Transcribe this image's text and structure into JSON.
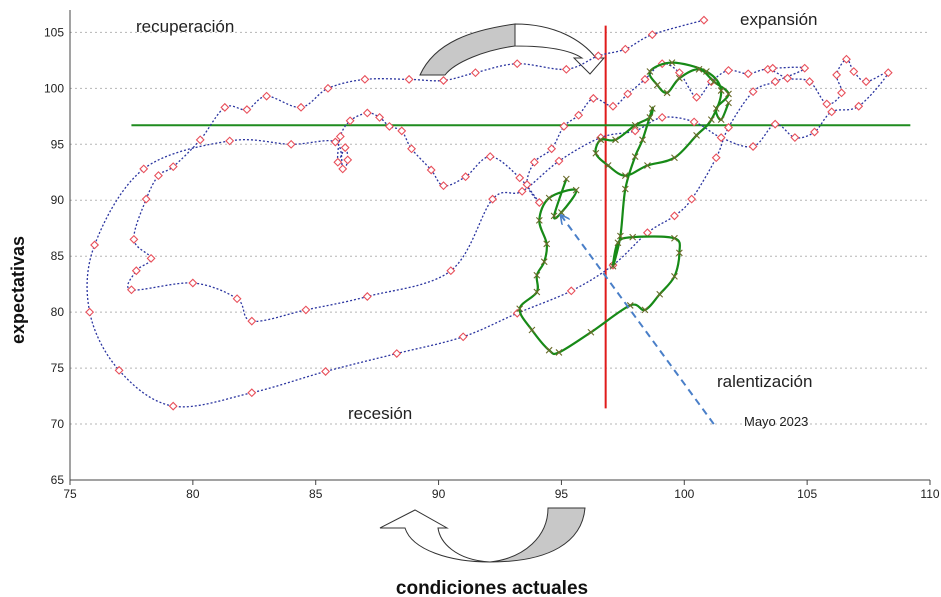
{
  "chart_data": {
    "type": "line",
    "xlabel": "condiciones actuales",
    "ylabel": "expectativas",
    "xlim": [
      75,
      110
    ],
    "ylim": [
      65,
      107
    ],
    "x_ticks": [
      75,
      80,
      85,
      90,
      95,
      100,
      105,
      110
    ],
    "y_ticks": [
      65,
      70,
      75,
      80,
      85,
      90,
      95,
      100,
      105
    ],
    "grid": "horizontal dotted",
    "quadrant_labels": {
      "top_left": "recuperación",
      "top_right": "expansión",
      "bottom_left": "recesión",
      "bottom_right": "ralentización"
    },
    "annotation": {
      "text": "Mayo 2023",
      "arrow_from": [
        101.2,
        70.0
      ],
      "arrow_to": [
        95.0,
        88.6
      ]
    },
    "reference_lines": {
      "vertical_x": 96.8,
      "horizontal_y": 96.7
    },
    "colors": {
      "history_line": "#2b35a0",
      "history_marker": "#e8505b",
      "recent_line": "#178a17",
      "reference_vertical": "#e01b1b",
      "reference_horizontal": "#1f8c1f",
      "annotation_arrow": "#4a7fc8",
      "cycle_arrow_fill": "#c8c8c8"
    },
    "series": [
      {
        "style": "dotted",
        "points": [
          [
            100.8,
            106.1
          ],
          [
            98.7,
            104.8
          ],
          [
            97.6,
            103.5
          ],
          [
            96.5,
            102.9
          ],
          [
            95.2,
            101.7
          ],
          [
            93.2,
            102.2
          ],
          [
            91.5,
            101.4
          ],
          [
            90.2,
            100.7
          ],
          [
            88.8,
            100.8
          ],
          [
            87.0,
            100.8
          ],
          [
            85.5,
            100.0
          ],
          [
            84.4,
            98.3
          ],
          [
            83.0,
            99.3
          ],
          [
            82.2,
            98.1
          ],
          [
            81.3,
            98.3
          ],
          [
            80.3,
            95.4
          ],
          [
            79.2,
            93.0
          ],
          [
            78.6,
            92.2
          ],
          [
            78.1,
            90.1
          ],
          [
            77.6,
            86.5
          ],
          [
            78.3,
            84.8
          ],
          [
            77.7,
            83.7
          ],
          [
            77.5,
            82.0
          ],
          [
            80.0,
            82.6
          ],
          [
            81.8,
            81.2
          ],
          [
            82.4,
            79.2
          ],
          [
            84.6,
            80.2
          ],
          [
            87.1,
            81.4
          ],
          [
            90.5,
            83.7
          ],
          [
            92.2,
            90.1
          ],
          [
            93.4,
            90.8
          ],
          [
            94.9,
            93.5
          ],
          [
            96.6,
            95.6
          ],
          [
            98.0,
            96.2
          ],
          [
            99.1,
            97.4
          ],
          [
            100.4,
            97.0
          ],
          [
            101.5,
            95.6
          ],
          [
            102.8,
            94.8
          ],
          [
            103.7,
            96.8
          ],
          [
            104.5,
            95.6
          ],
          [
            105.3,
            96.1
          ],
          [
            106.0,
            97.9
          ],
          [
            107.1,
            98.4
          ],
          [
            108.3,
            101.4
          ],
          [
            107.4,
            100.6
          ],
          [
            106.9,
            101.5
          ],
          [
            106.6,
            102.6
          ],
          [
            106.2,
            101.2
          ],
          [
            106.4,
            99.6
          ],
          [
            105.8,
            98.6
          ],
          [
            105.1,
            100.6
          ],
          [
            104.2,
            100.9
          ],
          [
            103.4,
            101.7
          ],
          [
            102.6,
            101.3
          ],
          [
            101.8,
            101.6
          ],
          [
            101.1,
            100.6
          ],
          [
            100.5,
            99.2
          ],
          [
            99.8,
            101.4
          ],
          [
            99.1,
            102.2
          ],
          [
            98.4,
            100.8
          ],
          [
            97.7,
            99.5
          ],
          [
            97.1,
            98.4
          ],
          [
            96.3,
            99.1
          ],
          [
            95.7,
            97.6
          ],
          [
            95.1,
            96.6
          ],
          [
            94.6,
            94.6
          ],
          [
            93.9,
            93.4
          ],
          [
            93.6,
            91.4
          ],
          [
            94.1,
            89.8
          ],
          [
            93.3,
            92.0
          ],
          [
            92.1,
            93.9
          ],
          [
            91.1,
            92.1
          ],
          [
            90.2,
            91.3
          ],
          [
            89.7,
            92.7
          ],
          [
            88.9,
            94.6
          ],
          [
            88.5,
            96.2
          ],
          [
            88.0,
            96.6
          ],
          [
            87.6,
            97.4
          ],
          [
            87.1,
            97.8
          ],
          [
            86.4,
            97.1
          ],
          [
            86.0,
            95.7
          ],
          [
            85.9,
            93.4
          ],
          [
            86.2,
            94.7
          ],
          [
            86.3,
            93.6
          ],
          [
            86.1,
            92.8
          ],
          [
            85.8,
            95.2
          ],
          [
            84.0,
            95.0
          ],
          [
            81.5,
            95.3
          ],
          [
            78.0,
            92.8
          ],
          [
            76.0,
            86.0
          ],
          [
            75.8,
            80.0
          ],
          [
            77.0,
            74.8
          ],
          [
            79.2,
            71.6
          ],
          [
            82.4,
            72.8
          ],
          [
            85.4,
            74.7
          ],
          [
            88.3,
            76.3
          ],
          [
            91.0,
            77.8
          ],
          [
            93.2,
            79.9
          ],
          [
            95.4,
            81.9
          ],
          [
            97.1,
            84.2
          ],
          [
            98.5,
            87.1
          ],
          [
            99.6,
            88.6
          ],
          [
            100.3,
            90.1
          ],
          [
            101.3,
            93.8
          ],
          [
            101.8,
            96.5
          ],
          [
            102.8,
            99.7
          ],
          [
            103.7,
            100.6
          ],
          [
            104.9,
            101.8
          ],
          [
            103.6,
            101.8
          ]
        ]
      },
      {
        "style": "solid",
        "points": [
          [
            95.2,
            91.9
          ],
          [
            94.7,
            88.6
          ],
          [
            95.0,
            88.9
          ],
          [
            95.6,
            90.9
          ],
          [
            94.5,
            90.2
          ],
          [
            94.1,
            88.2
          ],
          [
            94.4,
            86.1
          ],
          [
            94.3,
            84.5
          ],
          [
            94.0,
            83.3
          ],
          [
            94.0,
            81.8
          ],
          [
            93.3,
            80.3
          ],
          [
            93.8,
            78.4
          ],
          [
            94.5,
            76.6
          ],
          [
            94.9,
            76.4
          ],
          [
            96.2,
            78.2
          ],
          [
            97.8,
            80.6
          ],
          [
            98.4,
            80.2
          ],
          [
            99.0,
            81.6
          ],
          [
            99.6,
            83.2
          ],
          [
            99.8,
            85.3
          ],
          [
            99.6,
            86.6
          ],
          [
            97.9,
            86.7
          ],
          [
            97.3,
            86.2
          ],
          [
            97.1,
            84.1
          ],
          [
            97.4,
            86.8
          ],
          [
            97.6,
            91.0
          ],
          [
            98.0,
            93.9
          ],
          [
            98.3,
            95.4
          ],
          [
            98.7,
            98.2
          ],
          [
            98.6,
            97.4
          ],
          [
            98.0,
            96.7
          ],
          [
            97.2,
            95.4
          ],
          [
            96.6,
            95.4
          ],
          [
            96.4,
            94.2
          ],
          [
            96.9,
            93.1
          ],
          [
            97.6,
            92.2
          ],
          [
            98.5,
            93.1
          ],
          [
            99.6,
            93.8
          ],
          [
            100.5,
            95.8
          ],
          [
            101.1,
            97.2
          ],
          [
            101.5,
            99.8
          ],
          [
            100.9,
            101.5
          ],
          [
            99.5,
            102.3
          ],
          [
            98.6,
            101.5
          ],
          [
            98.9,
            100.3
          ],
          [
            99.3,
            99.6
          ],
          [
            99.8,
            100.9
          ],
          [
            100.6,
            101.7
          ],
          [
            101.2,
            100.6
          ],
          [
            101.8,
            99.5
          ],
          [
            101.3,
            98.2
          ],
          [
            101.5,
            97.2
          ],
          [
            101.8,
            98.7
          ]
        ]
      }
    ]
  }
}
